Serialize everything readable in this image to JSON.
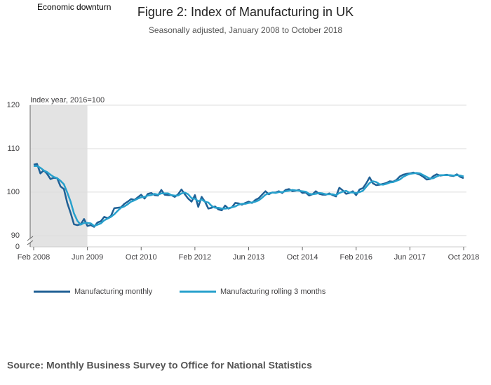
{
  "chart_data": {
    "type": "line",
    "title": "Figure 2: Index of Manufacturing in UK",
    "subtitle": "Seasonally adjusted, January 2008 to October 2018",
    "y_label": "Index year, 2016=100",
    "y_break_label": "0",
    "source": "Source: Monthly Business Survey to Office for National Statistics",
    "annotation": {
      "text": "Economic downturn",
      "start": "Feb 2008",
      "end": "Jun 2009"
    },
    "categories": [
      "Feb 2008",
      null,
      null,
      null,
      null,
      null,
      null,
      null,
      null,
      null,
      null,
      null,
      null,
      null,
      null,
      null,
      "Jun 2009",
      null,
      null,
      null,
      null,
      null,
      null,
      null,
      null,
      null,
      null,
      null,
      null,
      null,
      null,
      null,
      "Oct 2010",
      null,
      null,
      null,
      null,
      null,
      null,
      null,
      null,
      null,
      null,
      null,
      null,
      null,
      null,
      null,
      "Feb 2012",
      null,
      null,
      null,
      null,
      null,
      null,
      null,
      null,
      null,
      null,
      null,
      null,
      null,
      null,
      null,
      "Jun 2013",
      null,
      null,
      null,
      null,
      null,
      null,
      null,
      null,
      null,
      null,
      null,
      null,
      null,
      null,
      null,
      "Oct 2014",
      null,
      null,
      null,
      null,
      null,
      null,
      null,
      null,
      null,
      null,
      null,
      null,
      null,
      null,
      null,
      "Feb 2016",
      null,
      null,
      null,
      null,
      null,
      null,
      null,
      null,
      null,
      null,
      null,
      null,
      null,
      null,
      null,
      "Jun 2017",
      null,
      null,
      null,
      null,
      null,
      null,
      null,
      null,
      null,
      null,
      null,
      null,
      null,
      null,
      null,
      "Oct 2018"
    ],
    "series": [
      {
        "name": "Manufacturing monthly",
        "color": "#206095",
        "values": [
          106.3,
          106.5,
          104.3,
          105.0,
          104.2,
          103.0,
          103.3,
          103.2,
          101.3,
          100.7,
          97.5,
          95.2,
          92.6,
          92.4,
          92.6,
          93.8,
          92.2,
          92.4,
          92.0,
          93.0,
          93.3,
          94.3,
          94.0,
          94.5,
          96.3,
          96.4,
          96.5,
          97.3,
          97.8,
          98.4,
          98.2,
          98.8,
          99.4,
          98.5,
          99.6,
          99.8,
          99.3,
          99.2,
          100.5,
          99.4,
          99.3,
          99.3,
          98.9,
          99.5,
          100.6,
          99.5,
          98.5,
          97.8,
          99.3,
          96.6,
          98.9,
          97.8,
          96.2,
          96.4,
          96.7,
          96.0,
          95.8,
          96.9,
          96.2,
          96.5,
          97.5,
          97.4,
          97.1,
          97.5,
          97.8,
          97.5,
          98.2,
          98.6,
          99.4,
          100.2,
          99.5,
          99.9,
          99.9,
          100.2,
          99.8,
          100.5,
          100.7,
          100.2,
          100.3,
          100.5,
          99.8,
          99.9,
          99.2,
          99.5,
          100.2,
          99.6,
          99.4,
          99.4,
          99.7,
          99.3,
          99.0,
          101.0,
          100.4,
          99.6,
          99.8,
          100.2,
          99.3,
          100.6,
          100.9,
          102.0,
          103.4,
          102.0,
          101.6,
          101.7,
          101.9,
          102.1,
          102.5,
          102.4,
          102.8,
          103.6,
          104.0,
          104.2,
          104.3,
          104.5,
          104.3,
          104.0,
          103.5,
          102.9,
          103.0,
          103.7,
          104.1,
          103.8,
          103.9,
          104.0,
          103.8,
          103.7,
          104.1,
          103.5,
          103.2
        ]
      },
      {
        "name": "Manufacturing rolling 3 months",
        "color": "#27a0cc",
        "values": [
          106.0,
          106.0,
          105.6,
          105.0,
          104.6,
          104.0,
          103.5,
          103.2,
          102.6,
          101.8,
          99.9,
          97.8,
          95.1,
          93.4,
          92.5,
          92.9,
          92.9,
          92.8,
          92.2,
          92.5,
          92.8,
          93.5,
          93.9,
          94.3,
          94.9,
          95.7,
          96.4,
          96.7,
          97.2,
          97.8,
          98.1,
          98.5,
          98.8,
          98.9,
          99.2,
          99.3,
          99.6,
          99.4,
          99.7,
          99.7,
          99.7,
          99.3,
          99.2,
          99.2,
          99.7,
          99.9,
          99.5,
          98.6,
          98.5,
          97.9,
          98.3,
          97.8,
          97.6,
          96.8,
          96.4,
          96.4,
          96.2,
          96.2,
          96.3,
          96.5,
          96.7,
          97.1,
          97.3,
          97.3,
          97.5,
          97.6,
          97.8,
          98.1,
          98.7,
          99.4,
          99.7,
          99.9,
          99.8,
          100.0,
          100.0,
          100.2,
          100.3,
          100.5,
          100.4,
          100.3,
          100.2,
          100.1,
          99.6,
          99.5,
          99.6,
          99.8,
          99.7,
          99.5,
          99.5,
          99.5,
          99.3,
          99.8,
          100.1,
          100.3,
          99.9,
          99.9,
          99.8,
          100.0,
          100.3,
          101.2,
          102.1,
          102.5,
          102.3,
          101.8,
          101.7,
          101.9,
          102.2,
          102.3,
          102.6,
          102.9,
          103.5,
          103.9,
          104.2,
          104.3,
          104.4,
          104.3,
          103.9,
          103.5,
          103.1,
          103.2,
          103.6,
          103.9,
          103.9,
          103.9,
          103.9,
          103.8,
          103.9,
          103.8,
          103.6
        ]
      }
    ],
    "ylim": [
      87.4,
      120
    ],
    "yticks": [
      90,
      100,
      110,
      120
    ],
    "grid": true
  }
}
